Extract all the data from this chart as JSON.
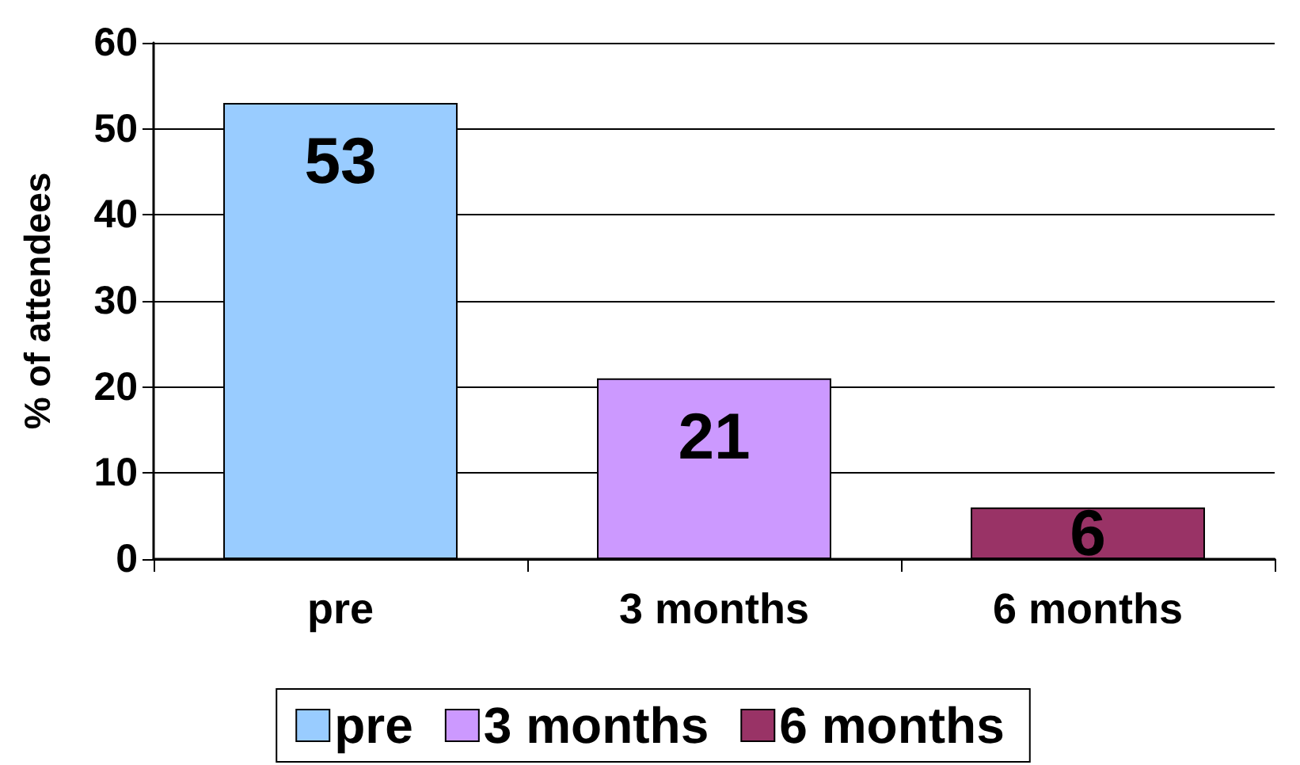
{
  "chart_data": {
    "type": "bar",
    "ylabel": "% of attendees",
    "categories": [
      "pre",
      "3 months",
      "6 months"
    ],
    "series": [
      {
        "name": "pre",
        "color": "#99ccff",
        "values": [
          53,
          null,
          null
        ]
      },
      {
        "name": "3 months",
        "color": "#cc99ff",
        "values": [
          null,
          21,
          null
        ]
      },
      {
        "name": "6 months",
        "color": "#993366",
        "values": [
          null,
          null,
          6
        ]
      }
    ],
    "ylim": [
      0,
      60
    ],
    "yticks": [
      0,
      10,
      20,
      30,
      40,
      50,
      60
    ],
    "grid": "y",
    "data_labels": true,
    "legend": "bottom"
  }
}
